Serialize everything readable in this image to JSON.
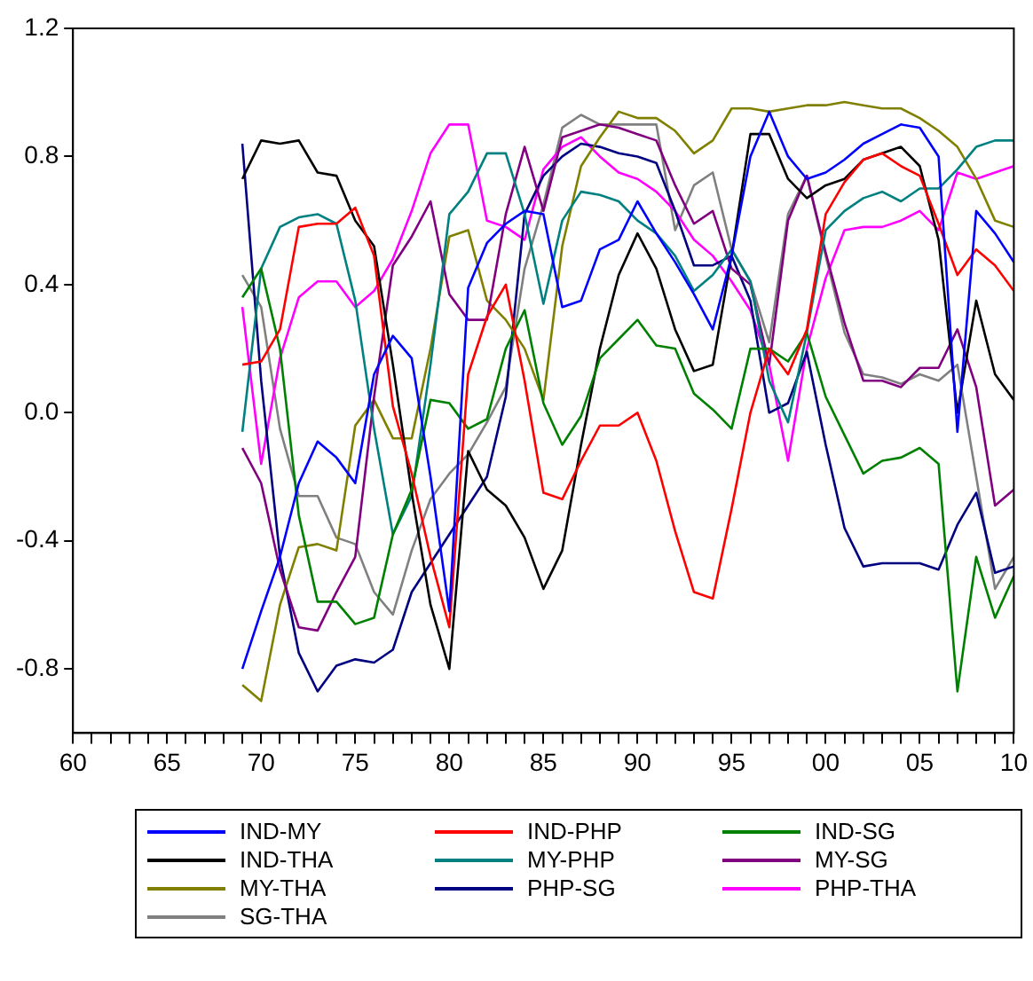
{
  "chart_data": {
    "type": "line",
    "legend": "bottom",
    "x": [
      1969,
      1970,
      1971,
      1972,
      1973,
      1974,
      1975,
      1976,
      1977,
      1978,
      1979,
      1980,
      1981,
      1982,
      1983,
      1984,
      1985,
      1986,
      1987,
      1988,
      1989,
      1990,
      1991,
      1992,
      1993,
      1994,
      1995,
      1996,
      1997,
      1998,
      1999,
      2000,
      2001,
      2002,
      2003,
      2004,
      2005,
      2006,
      2007,
      2008,
      2009,
      2010
    ],
    "xlim": [
      1960,
      2010
    ],
    "xticks": [
      {
        "value": 1960,
        "label": "60"
      },
      {
        "value": 1961,
        "label": null
      },
      {
        "value": 1962,
        "label": null
      },
      {
        "value": 1963,
        "label": null
      },
      {
        "value": 1964,
        "label": null
      },
      {
        "value": 1965,
        "label": "65"
      },
      {
        "value": 1966,
        "label": null
      },
      {
        "value": 1967,
        "label": null
      },
      {
        "value": 1968,
        "label": null
      },
      {
        "value": 1969,
        "label": null
      },
      {
        "value": 1970,
        "label": "70"
      },
      {
        "value": 1971,
        "label": null
      },
      {
        "value": 1972,
        "label": null
      },
      {
        "value": 1973,
        "label": null
      },
      {
        "value": 1974,
        "label": null
      },
      {
        "value": 1975,
        "label": "75"
      },
      {
        "value": 1976,
        "label": null
      },
      {
        "value": 1977,
        "label": null
      },
      {
        "value": 1978,
        "label": null
      },
      {
        "value": 1979,
        "label": null
      },
      {
        "value": 1980,
        "label": "80"
      },
      {
        "value": 1981,
        "label": null
      },
      {
        "value": 1982,
        "label": null
      },
      {
        "value": 1983,
        "label": null
      },
      {
        "value": 1984,
        "label": null
      },
      {
        "value": 1985,
        "label": "85"
      },
      {
        "value": 1986,
        "label": null
      },
      {
        "value": 1987,
        "label": null
      },
      {
        "value": 1988,
        "label": null
      },
      {
        "value": 1989,
        "label": null
      },
      {
        "value": 1990,
        "label": "90"
      },
      {
        "value": 1991,
        "label": null
      },
      {
        "value": 1992,
        "label": null
      },
      {
        "value": 1993,
        "label": null
      },
      {
        "value": 1994,
        "label": null
      },
      {
        "value": 1995,
        "label": "95"
      },
      {
        "value": 1996,
        "label": null
      },
      {
        "value": 1997,
        "label": null
      },
      {
        "value": 1998,
        "label": null
      },
      {
        "value": 1999,
        "label": null
      },
      {
        "value": 2000,
        "label": "00"
      },
      {
        "value": 2001,
        "label": null
      },
      {
        "value": 2002,
        "label": null
      },
      {
        "value": 2003,
        "label": null
      },
      {
        "value": 2004,
        "label": null
      },
      {
        "value": 2005,
        "label": "05"
      },
      {
        "value": 2006,
        "label": null
      },
      {
        "value": 2007,
        "label": null
      },
      {
        "value": 2008,
        "label": null
      },
      {
        "value": 2009,
        "label": null
      },
      {
        "value": 2010,
        "label": "10"
      }
    ],
    "ylim": [
      -1.0,
      1.2
    ],
    "yticks": [
      -0.8,
      -0.4,
      {
        "value": 0,
        "label": "0.0"
      },
      0.4,
      0.8,
      1.2
    ],
    "series": [
      {
        "name": "IND-MY",
        "color": "#0000ff",
        "values": [
          -0.8,
          -0.62,
          -0.45,
          -0.22,
          -0.09,
          -0.14,
          -0.22,
          0.12,
          0.24,
          0.17,
          -0.2,
          -0.62,
          0.39,
          0.53,
          0.59,
          0.63,
          0.62,
          0.33,
          0.35,
          0.51,
          0.54,
          0.66,
          0.56,
          0.47,
          0.37,
          0.26,
          0.49,
          0.8,
          0.94,
          0.8,
          0.73,
          0.75,
          0.79,
          0.84,
          0.87,
          0.9,
          0.89,
          0.8,
          -0.06,
          0.63,
          0.56,
          0.47
        ]
      },
      {
        "name": "IND-PHP",
        "color": "#ff0000",
        "values": [
          0.15,
          0.16,
          0.26,
          0.58,
          0.59,
          0.59,
          0.64,
          0.49,
          0.02,
          -0.19,
          -0.45,
          -0.67,
          0.12,
          0.3,
          0.4,
          0.1,
          -0.25,
          -0.27,
          -0.15,
          -0.04,
          -0.04,
          0.0,
          -0.15,
          -0.37,
          -0.56,
          -0.58,
          -0.3,
          0.0,
          0.2,
          0.12,
          0.26,
          0.62,
          0.72,
          0.79,
          0.81,
          0.77,
          0.74,
          0.59,
          0.43,
          0.51,
          0.46,
          0.38
        ]
      },
      {
        "name": "IND-SG",
        "color": "#008000",
        "values": [
          0.36,
          0.45,
          0.2,
          -0.32,
          -0.59,
          -0.59,
          -0.66,
          -0.64,
          -0.38,
          -0.24,
          0.04,
          0.03,
          -0.05,
          -0.02,
          0.2,
          0.32,
          0.03,
          -0.1,
          -0.01,
          0.17,
          0.23,
          0.29,
          0.21,
          0.2,
          0.06,
          0.01,
          -0.05,
          0.2,
          0.2,
          0.16,
          0.25,
          0.05,
          -0.07,
          -0.19,
          -0.15,
          -0.14,
          -0.11,
          -0.16,
          -0.87,
          -0.45,
          -0.64,
          -0.51
        ]
      },
      {
        "name": "IND-THA",
        "color": "#000000",
        "values": [
          0.73,
          0.85,
          0.84,
          0.85,
          0.75,
          0.74,
          0.6,
          0.52,
          0.15,
          -0.25,
          -0.6,
          -0.8,
          -0.12,
          -0.24,
          -0.29,
          -0.39,
          -0.55,
          -0.43,
          -0.1,
          0.2,
          0.43,
          0.56,
          0.45,
          0.26,
          0.13,
          0.15,
          0.49,
          0.87,
          0.87,
          0.73,
          0.67,
          0.71,
          0.73,
          0.79,
          0.81,
          0.83,
          0.77,
          0.54,
          0.0,
          0.35,
          0.12,
          0.04
        ]
      },
      {
        "name": "MY-PHP",
        "color": "#008080",
        "values": [
          -0.06,
          0.45,
          0.58,
          0.61,
          0.62,
          0.59,
          0.35,
          -0.05,
          -0.38,
          -0.26,
          0.15,
          0.62,
          0.69,
          0.81,
          0.81,
          0.62,
          0.34,
          0.6,
          0.69,
          0.68,
          0.66,
          0.6,
          0.56,
          0.49,
          0.38,
          0.43,
          0.51,
          0.41,
          0.1,
          -0.03,
          0.25,
          0.57,
          0.63,
          0.67,
          0.69,
          0.66,
          0.7,
          0.7,
          0.76,
          0.83,
          0.85,
          0.85
        ]
      },
      {
        "name": "MY-SG",
        "color": "#800080",
        "values": [
          -0.11,
          -0.22,
          -0.49,
          -0.67,
          -0.68,
          -0.56,
          -0.45,
          0.05,
          0.46,
          0.55,
          0.66,
          0.37,
          0.29,
          0.29,
          0.62,
          0.83,
          0.63,
          0.86,
          0.88,
          0.9,
          0.89,
          0.87,
          0.85,
          0.71,
          0.59,
          0.63,
          0.45,
          0.4,
          0.15,
          0.6,
          0.74,
          0.5,
          0.28,
          0.1,
          0.1,
          0.08,
          0.14,
          0.14,
          0.26,
          0.08,
          -0.29,
          -0.24
        ]
      },
      {
        "name": "MY-THA",
        "color": "#808000",
        "values": [
          -0.85,
          -0.9,
          -0.6,
          -0.42,
          -0.41,
          -0.43,
          -0.04,
          0.04,
          -0.08,
          -0.08,
          0.2,
          0.55,
          0.57,
          0.35,
          0.29,
          0.2,
          0.04,
          0.52,
          0.77,
          0.86,
          0.94,
          0.92,
          0.92,
          0.88,
          0.81,
          0.85,
          0.95,
          0.95,
          0.94,
          0.95,
          0.96,
          0.96,
          0.97,
          0.96,
          0.95,
          0.95,
          0.92,
          0.88,
          0.83,
          0.73,
          0.6,
          0.58
        ]
      },
      {
        "name": "PHP-SG",
        "color": "#000080",
        "values": [
          0.84,
          0.1,
          -0.45,
          -0.75,
          -0.87,
          -0.79,
          -0.77,
          -0.78,
          -0.74,
          -0.56,
          -0.47,
          -0.38,
          -0.29,
          -0.2,
          0.05,
          0.62,
          0.74,
          0.8,
          0.84,
          0.83,
          0.81,
          0.8,
          0.78,
          0.63,
          0.46,
          0.46,
          0.49,
          0.35,
          0.0,
          0.03,
          0.19,
          -0.1,
          -0.36,
          -0.48,
          -0.47,
          -0.47,
          -0.47,
          -0.49,
          -0.35,
          -0.25,
          -0.5,
          -0.48
        ]
      },
      {
        "name": "PHP-THA",
        "color": "#ff00ff",
        "values": [
          0.33,
          -0.16,
          0.17,
          0.36,
          0.41,
          0.41,
          0.33,
          0.38,
          0.48,
          0.63,
          0.81,
          0.9,
          0.9,
          0.6,
          0.58,
          0.54,
          0.76,
          0.83,
          0.86,
          0.8,
          0.75,
          0.73,
          0.69,
          0.63,
          0.54,
          0.49,
          0.41,
          0.32,
          0.15,
          -0.15,
          0.2,
          0.42,
          0.57,
          0.58,
          0.58,
          0.6,
          0.63,
          0.57,
          0.75,
          0.73,
          0.75,
          0.77
        ]
      },
      {
        "name": "SG-THA",
        "color": "#808080",
        "values": [
          0.43,
          0.33,
          -0.05,
          -0.26,
          -0.26,
          -0.39,
          -0.41,
          -0.56,
          -0.63,
          -0.43,
          -0.27,
          -0.19,
          -0.13,
          -0.03,
          0.08,
          0.45,
          0.65,
          0.89,
          0.93,
          0.9,
          0.9,
          0.9,
          0.9,
          0.57,
          0.71,
          0.75,
          0.51,
          0.41,
          0.22,
          0.62,
          0.74,
          0.49,
          0.25,
          0.12,
          0.11,
          0.09,
          0.12,
          0.1,
          0.15,
          -0.2,
          -0.55,
          -0.45
        ]
      }
    ]
  }
}
